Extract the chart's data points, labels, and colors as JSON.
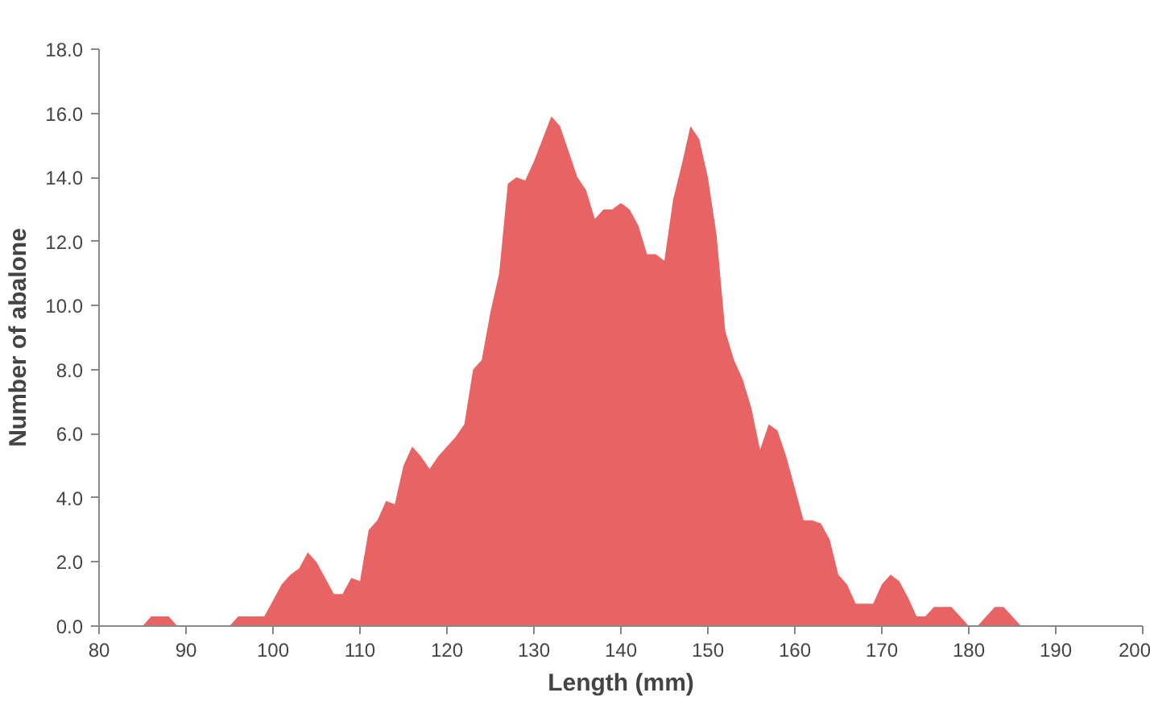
{
  "chart_data": {
    "type": "area",
    "xlabel": "Length (mm)",
    "ylabel": "Number of abalone",
    "x": [
      85,
      86,
      87,
      88,
      89,
      90,
      91,
      92,
      93,
      94,
      95,
      96,
      97,
      98,
      99,
      100,
      101,
      102,
      103,
      104,
      105,
      106,
      107,
      108,
      109,
      110,
      111,
      112,
      113,
      114,
      115,
      116,
      117,
      118,
      119,
      120,
      121,
      122,
      123,
      124,
      125,
      126,
      127,
      128,
      129,
      130,
      131,
      132,
      133,
      134,
      135,
      136,
      137,
      138,
      139,
      140,
      141,
      142,
      143,
      144,
      145,
      146,
      147,
      148,
      149,
      150,
      151,
      152,
      153,
      154,
      155,
      156,
      157,
      158,
      159,
      160,
      161,
      162,
      163,
      164,
      165,
      166,
      167,
      168,
      169,
      170,
      171,
      172,
      173,
      174,
      175,
      176,
      177,
      178,
      179,
      180,
      181,
      182,
      183,
      184,
      185,
      186
    ],
    "series": [
      {
        "color": "#e86464",
        "values": [
          0,
          0.3,
          0.3,
          0.3,
          0,
          0,
          0,
          0,
          0,
          0,
          0,
          0.3,
          0.3,
          0.3,
          0.3,
          0.8,
          1.3,
          1.6,
          1.8,
          2.3,
          2.0,
          1.5,
          1.0,
          1.0,
          1.5,
          1.4,
          3.0,
          3.3,
          3.9,
          3.8,
          5.0,
          5.6,
          5.3,
          4.9,
          5.3,
          5.6,
          5.9,
          6.3,
          8.0,
          8.3,
          9.8,
          11.0,
          13.8,
          14.0,
          13.9,
          14.5,
          15.2,
          15.9,
          15.6,
          14.8,
          14.0,
          13.6,
          12.7,
          13.0,
          13.0,
          13.2,
          13.0,
          12.5,
          11.6,
          11.6,
          11.4,
          13.3,
          14.4,
          15.6,
          15.2,
          14.0,
          12.2,
          9.2,
          8.3,
          7.7,
          6.8,
          5.5,
          6.3,
          6.1,
          5.3,
          4.3,
          3.3,
          3.3,
          3.2,
          2.7,
          1.6,
          1.3,
          0.7,
          0.7,
          0.7,
          1.3,
          1.6,
          1.4,
          0.9,
          0.3,
          0.3,
          0.6,
          0.6,
          0.6,
          0.3,
          0,
          0,
          0.3,
          0.6,
          0.6,
          0.3,
          0
        ]
      }
    ],
    "xlim": [
      80,
      200
    ],
    "xticks": [
      80,
      90,
      100,
      110,
      120,
      130,
      140,
      150,
      160,
      170,
      180,
      190,
      200
    ],
    "ylim": [
      0,
      18
    ],
    "yticks": [
      {
        "value": 0,
        "label": "0.0"
      },
      {
        "value": 2,
        "label": "2.0"
      },
      {
        "value": 4,
        "label": "4.0"
      },
      {
        "value": 6,
        "label": "6.0"
      },
      {
        "value": 8,
        "label": "8.0"
      },
      {
        "value": 10,
        "label": "10.0"
      },
      {
        "value": 12,
        "label": "12.0"
      },
      {
        "value": 14,
        "label": "14.0"
      },
      {
        "value": 16,
        "label": "16.0"
      },
      {
        "value": 18,
        "label": "18.0"
      }
    ],
    "grid": false
  }
}
